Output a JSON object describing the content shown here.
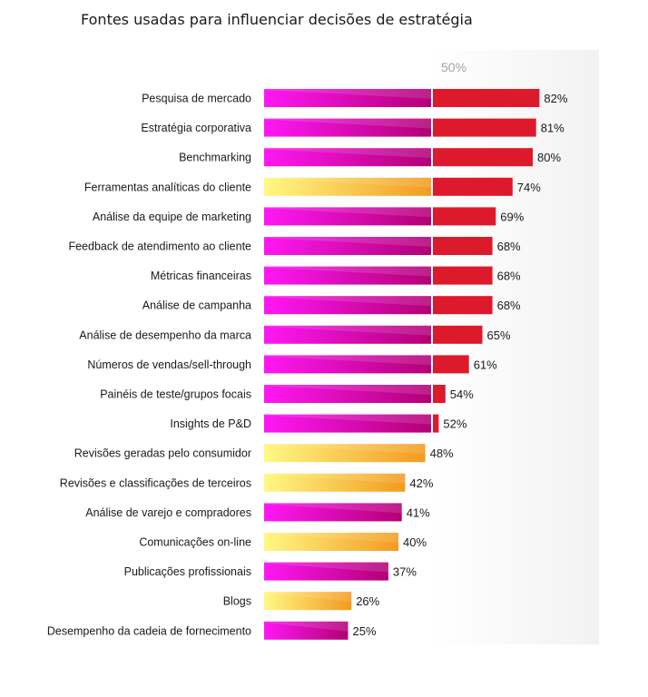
{
  "chart_data": {
    "type": "bar",
    "orientation": "horizontal",
    "title": "Fontes usadas para influenciar decisões de estratégia",
    "reference_line": {
      "value": 50,
      "label": "50%"
    },
    "xlim": [
      0,
      100
    ],
    "colors": {
      "magenta_start": "#ff17f5",
      "magenta_end": "#b30074",
      "yellow_start": "#fff885",
      "yellow_end": "#f39a1f",
      "above_reference": "#dc1a2c",
      "reference_panel": "#f2f2f2"
    },
    "categories": [
      "Pesquisa de mercado",
      "Estratégia corporativa",
      "Benchmarking",
      "Ferramentas analíticas do cliente",
      "Análise da equipe de marketing",
      "Feedback de atendimento ao cliente",
      "Métricas financeiras",
      "Análise de campanha",
      "Análise de desempenho da marca",
      "Números de vendas/sell-through",
      "Painéis de teste/grupos focais",
      "Insights de P&D",
      "Revisões geradas pelo consumidor",
      "Revisões e classificações de terceiros",
      "Análise de varejo e compradores",
      "Comunicações on-line",
      "Publicações profissionais",
      "Blogs",
      "Desempenho da cadeia de fornecimento"
    ],
    "values": [
      82,
      81,
      80,
      74,
      69,
      68,
      68,
      68,
      65,
      61,
      54,
      52,
      48,
      42,
      41,
      40,
      37,
      26,
      25
    ],
    "value_labels": [
      "82%",
      "81%",
      "80%",
      "74%",
      "69%",
      "68%",
      "68%",
      "68%",
      "65%",
      "61%",
      "54%",
      "52%",
      "48%",
      "42%",
      "41%",
      "40%",
      "37%",
      "26%",
      "25%"
    ],
    "bar_style": [
      "magenta",
      "magenta",
      "magenta",
      "yellow",
      "magenta",
      "magenta",
      "magenta",
      "magenta",
      "magenta",
      "magenta",
      "magenta",
      "magenta",
      "yellow",
      "yellow",
      "magenta",
      "yellow",
      "magenta",
      "yellow",
      "magenta"
    ]
  }
}
